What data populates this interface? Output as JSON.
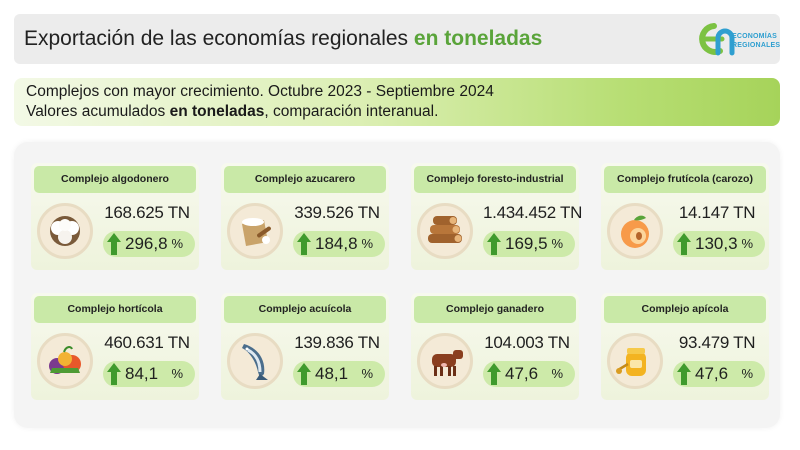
{
  "header": {
    "title_main": "Exportación de las economías regionales",
    "title_accent": "en toneladas"
  },
  "logo": {
    "line1": "ECONOMÍAS",
    "line2": "REGIONALES",
    "colors": {
      "green": "#7cc242",
      "blue": "#2f9fd0"
    }
  },
  "subtitle": {
    "line1": "Complejos con mayor crecimiento. Octubre 2023 - Septiembre 2024",
    "line2_prefix": "Valores acumulados ",
    "line2_bold": "en toneladas",
    "line2_suffix": ", comparación interanual."
  },
  "colors": {
    "accent_green": "#5aa43a",
    "arrow_green": "#3f9a2d",
    "card_header": "#c9e9a7",
    "pill": "#cdeaa9"
  },
  "cards": [
    {
      "name": "Complejo algodonero",
      "value": "168.625 TN",
      "growth": "296,8",
      "unit": "%",
      "icon": "cotton-icon"
    },
    {
      "name": "Complejo azucarero",
      "value": "339.526 TN",
      "growth": "184,8",
      "unit": "%",
      "icon": "sugar-icon"
    },
    {
      "name": "Complejo foresto-industrial",
      "value": "1.434.452 TN",
      "growth": "169,5",
      "unit": "%",
      "icon": "logs-icon"
    },
    {
      "name": "Complejo frutícola (carozo)",
      "value": "14.147 TN",
      "growth": "130,3",
      "unit": "%",
      "icon": "peach-icon"
    },
    {
      "name": "Complejo hortícola",
      "value": "460.631 TN",
      "growth": "84,1",
      "unit": "%",
      "icon": "vegetables-icon"
    },
    {
      "name": "Complejo acuícola",
      "value": "139.836 TN",
      "growth": "48,1",
      "unit": "%",
      "icon": "fish-icon"
    },
    {
      "name": "Complejo ganadero",
      "value": "104.003 TN",
      "growth": "47,6",
      "unit": "%",
      "icon": "cow-icon"
    },
    {
      "name": "Complejo apícola",
      "value": "93.479 TN",
      "growth": "47,6",
      "unit": "%",
      "icon": "honey-icon"
    }
  ]
}
